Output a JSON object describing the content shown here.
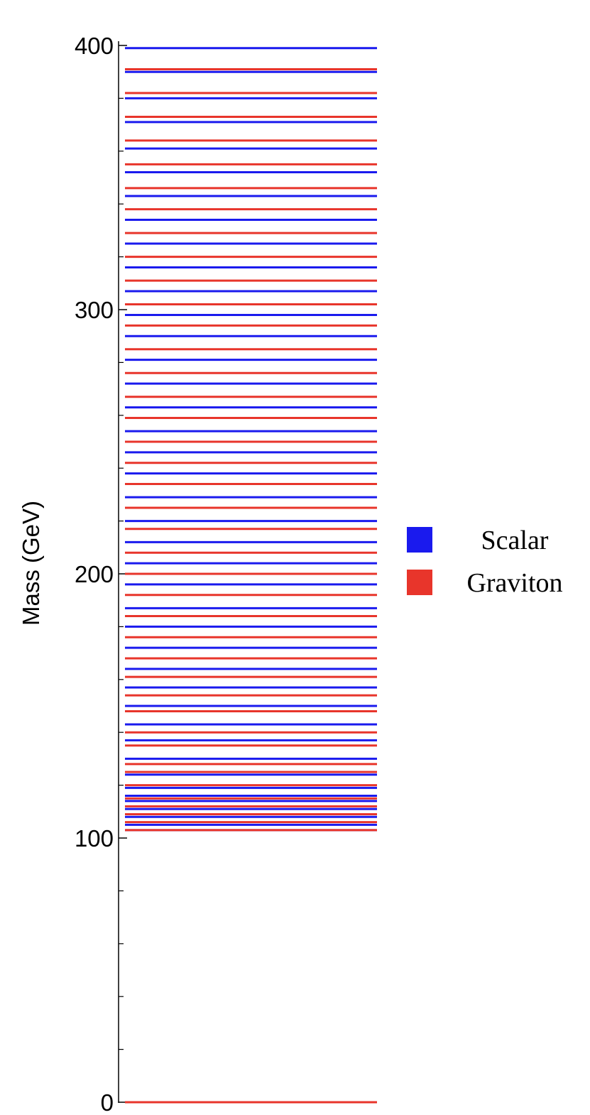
{
  "chart_data": {
    "type": "spectrum",
    "ylabel": "Mass (GeV)",
    "ylim": [
      0,
      400
    ],
    "yticks": [
      0,
      100,
      200,
      300,
      400
    ],
    "yminor_step": 20,
    "grid": false,
    "legend_position": "right",
    "colors": {
      "Scalar": "#1a1aee",
      "Graviton": "#e8352b"
    },
    "series": [
      {
        "name": "Scalar",
        "values": [
          103,
          105,
          108,
          111,
          114,
          116,
          119,
          124,
          130,
          137,
          143,
          150,
          157,
          164,
          172,
          180,
          187,
          196,
          204,
          212,
          220,
          229,
          238,
          246,
          254,
          263,
          272,
          281,
          290,
          298,
          307,
          316,
          325,
          334,
          343,
          352,
          361,
          371,
          380,
          390,
          399
        ]
      },
      {
        "name": "Graviton",
        "values": [
          0,
          103,
          106,
          109,
          112,
          115,
          120,
          125,
          128,
          135,
          140,
          148,
          154,
          161,
          168,
          176,
          184,
          192,
          200,
          208,
          217,
          225,
          234,
          242,
          250,
          259,
          267,
          276,
          285,
          294,
          302,
          311,
          320,
          329,
          338,
          346,
          355,
          364,
          373,
          382,
          391
        ]
      }
    ]
  }
}
